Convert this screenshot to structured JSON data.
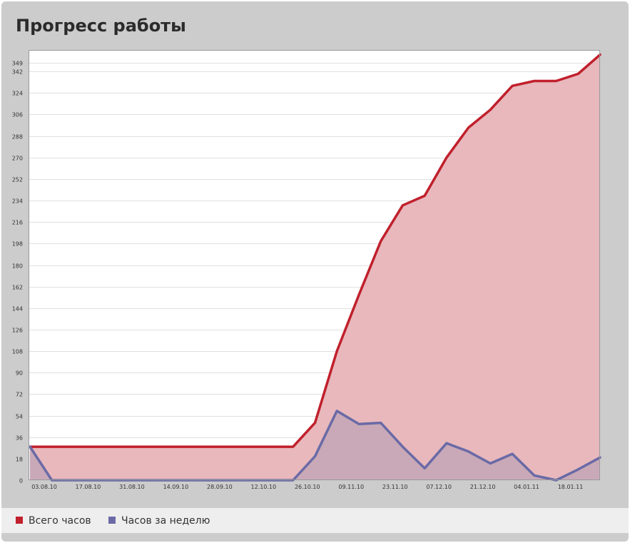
{
  "panel": {
    "title": "Прогресс работы"
  },
  "colors": {
    "total_line": "#c0202c",
    "total_fill": "#e8b8bc",
    "weekly_line": "#6a6aa6",
    "weekly_fill": "#bfa4b6",
    "grid": "#e0e0e0"
  },
  "chart_data": {
    "type": "area",
    "title": "Прогресс работы",
    "x_tick_labels": [
      "03.08.10",
      "17.08.10",
      "31.08.10",
      "14.09.10",
      "28.09.10",
      "12.10.10",
      "26.10.10",
      "09.11.10",
      "23.11.10",
      "07.12.10",
      "21.12.10",
      "04.01.11",
      "18.01.11"
    ],
    "y_tick_labels": [
      "0",
      "18",
      "36",
      "54",
      "72",
      "90",
      "108",
      "126",
      "144",
      "162",
      "180",
      "198",
      "216",
      "234",
      "252",
      "270",
      "288",
      "306",
      "324",
      "342",
      "349"
    ],
    "ylim": [
      0,
      360
    ],
    "grid": true,
    "legend": "bottom-left",
    "series": [
      {
        "name": "Всего часов",
        "values": [
          28,
          28,
          28,
          28,
          28,
          28,
          28,
          28,
          28,
          28,
          28,
          28,
          28,
          48,
          108,
          155,
          200,
          230,
          238,
          270,
          295,
          310,
          330,
          334,
          334,
          340,
          356
        ]
      },
      {
        "name": "Часов за неделю",
        "values": [
          28,
          0,
          0,
          0,
          0,
          0,
          0,
          0,
          0,
          0,
          0,
          0,
          0,
          20,
          58,
          47,
          48,
          28,
          10,
          31,
          24,
          14,
          22,
          4,
          0,
          9,
          19
        ]
      }
    ]
  }
}
